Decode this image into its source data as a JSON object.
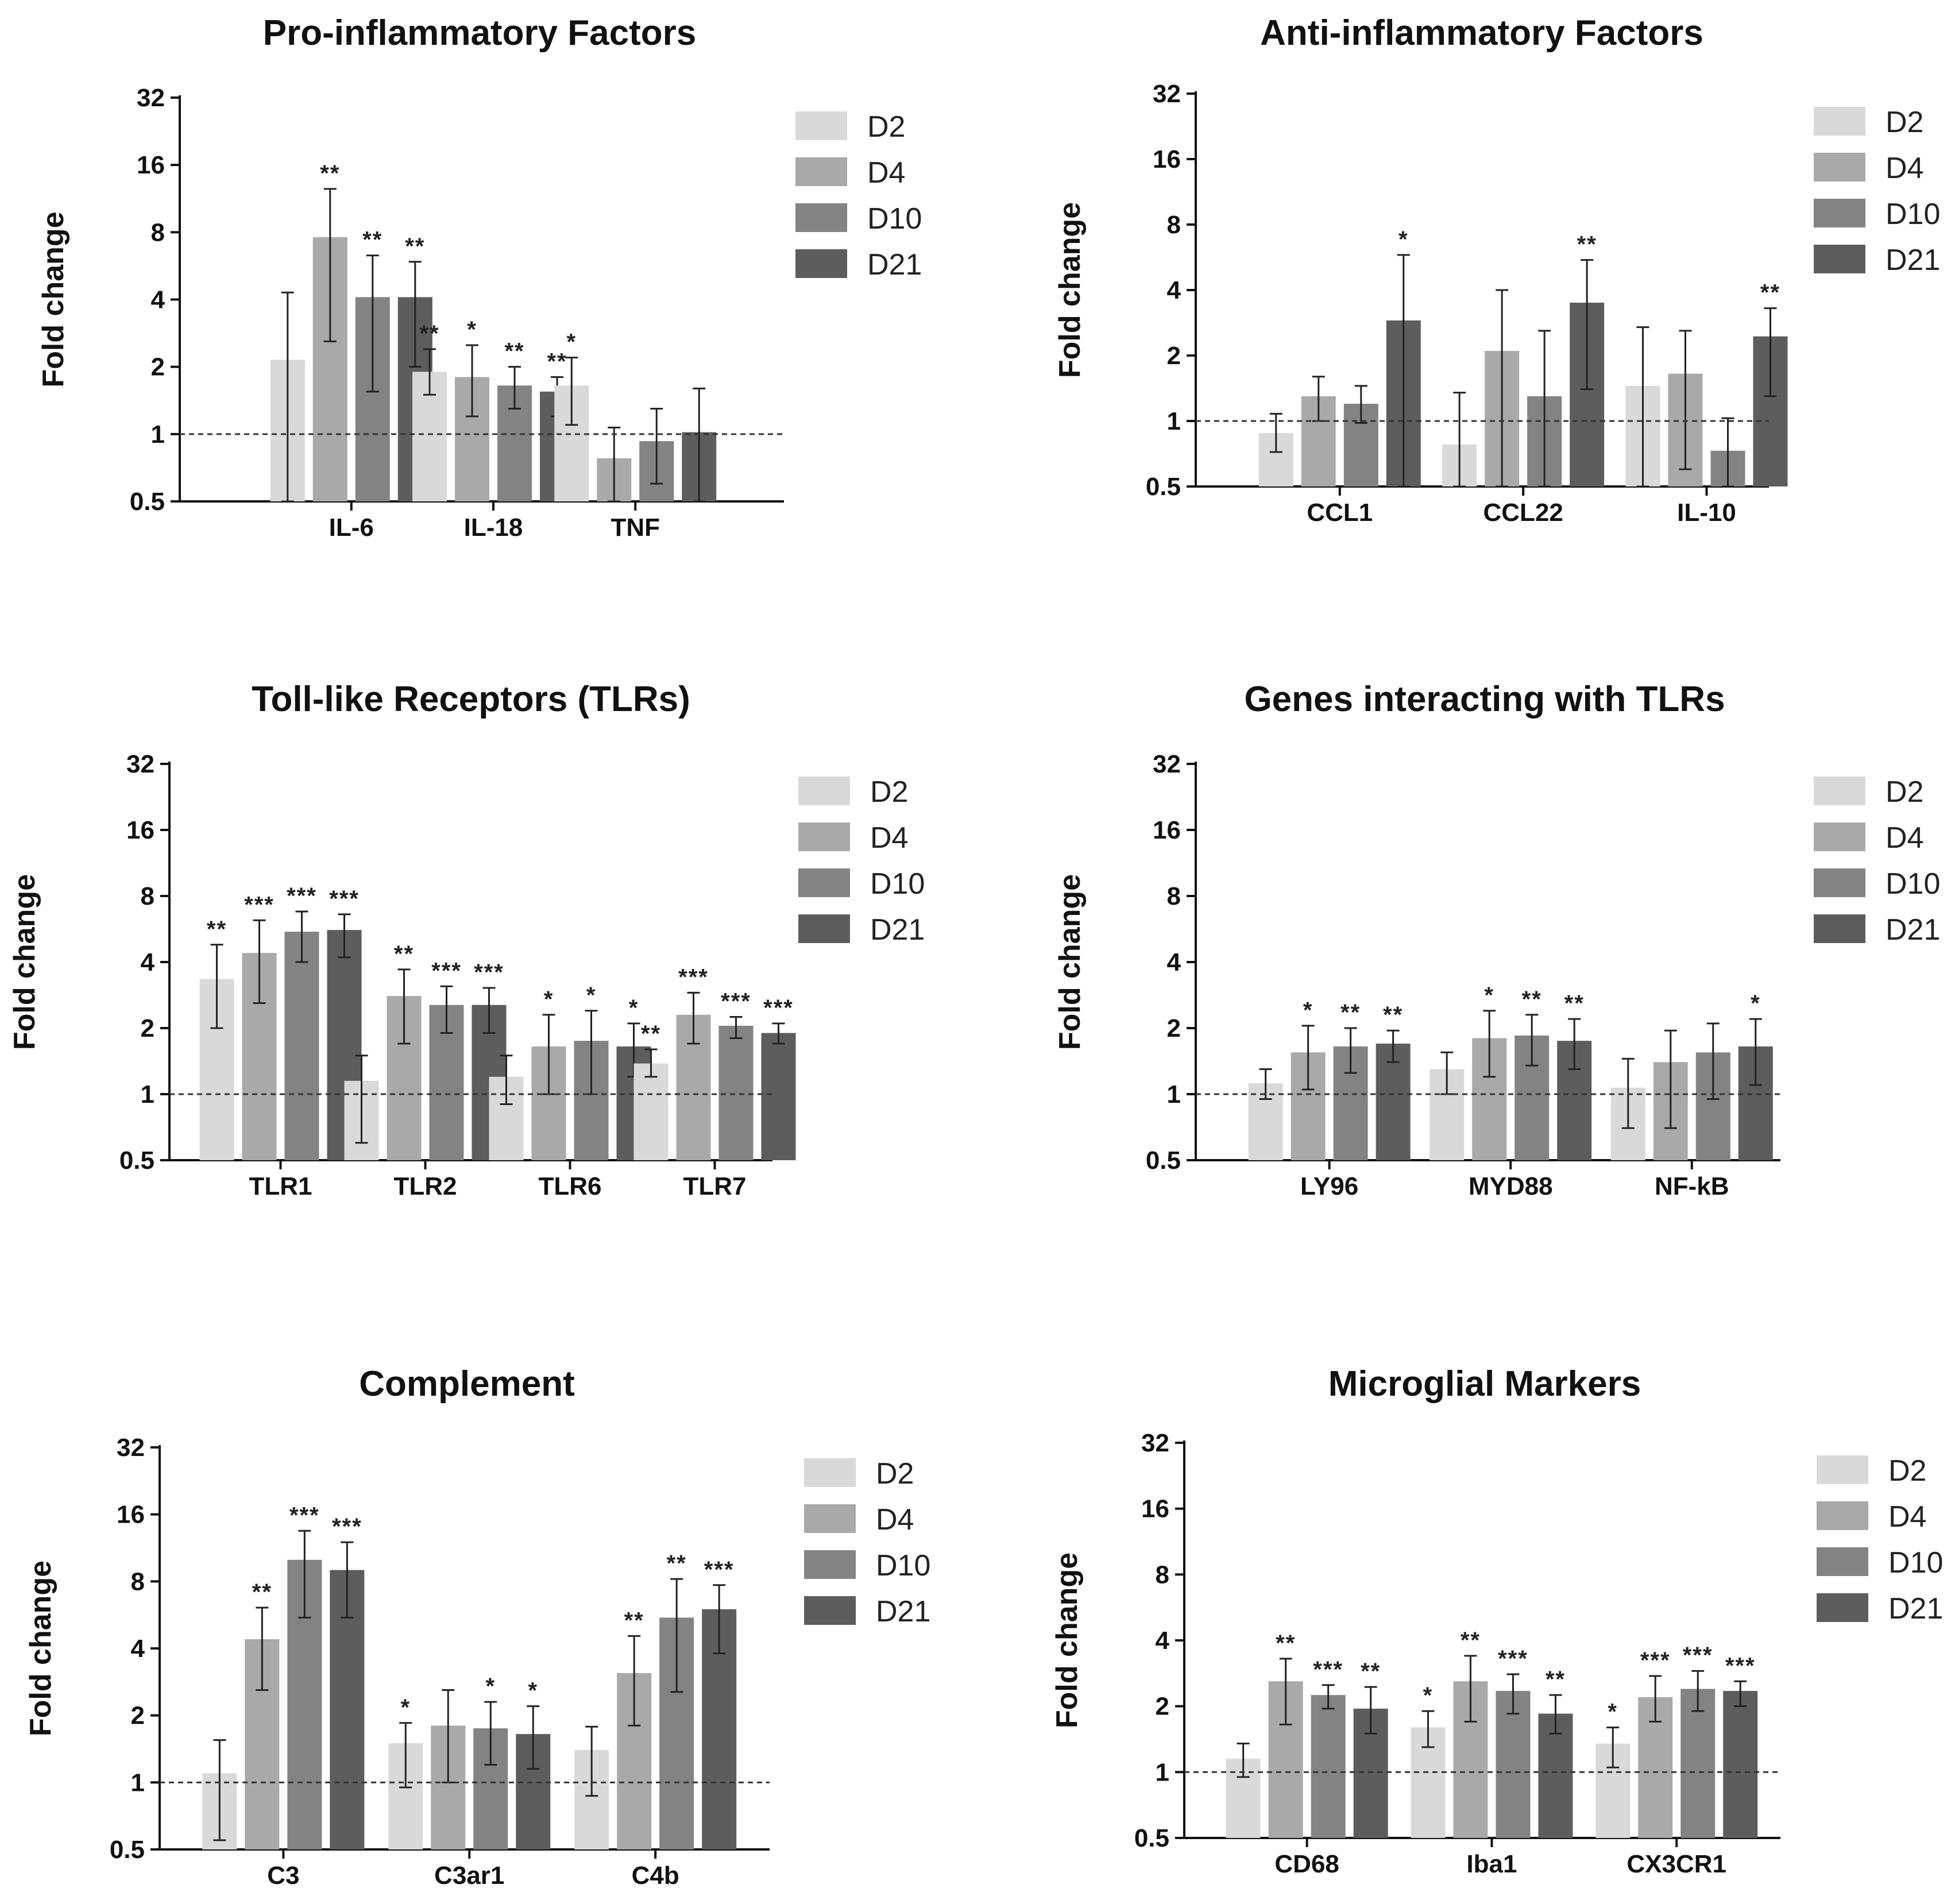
{
  "chart_data": [
    {
      "type": "bar",
      "title": "Pro-inflammatory Factors",
      "ylabel": "Fold change",
      "yscale": "log2",
      "ylim": [
        0.5,
        32
      ],
      "yticks": [
        "32",
        "16",
        "8",
        "4",
        "2",
        "1",
        "0.5"
      ],
      "reference_line": 1,
      "legend": [
        "D2",
        "D4",
        "D10",
        "D21"
      ],
      "categories": [
        "IL-6",
        "IL-18",
        "TNF"
      ],
      "series": [
        {
          "name": "D2",
          "color": "#d9d9d9",
          "values": [
            2.15,
            1.9,
            1.65
          ],
          "err_low": [
            0.5,
            1.5,
            1.1
          ],
          "err_high": [
            4.3,
            2.4,
            2.2
          ],
          "sig": [
            "",
            "**",
            "*"
          ]
        },
        {
          "name": "D4",
          "color": "#a9a9a9",
          "values": [
            7.6,
            1.8,
            0.78
          ],
          "err_low": [
            2.6,
            1.2,
            0.5
          ],
          "err_high": [
            12.5,
            2.5,
            1.07
          ],
          "sig": [
            "**",
            "*",
            ""
          ]
        },
        {
          "name": "D10",
          "color": "#838383",
          "values": [
            4.1,
            1.65,
            0.93
          ],
          "err_low": [
            1.55,
            1.3,
            0.6
          ],
          "err_high": [
            6.3,
            2.0,
            1.3
          ],
          "sig": [
            "**",
            "**",
            ""
          ]
        },
        {
          "name": "D21",
          "color": "#5d5d5d",
          "values": [
            4.1,
            1.55,
            1.02
          ],
          "err_low": [
            2.0,
            1.2,
            0.5
          ],
          "err_high": [
            5.9,
            1.8,
            1.6
          ],
          "sig": [
            "**",
            "**",
            ""
          ]
        }
      ]
    },
    {
      "type": "bar",
      "title": "Anti-inflammatory Factors",
      "ylabel": "Fold change",
      "yscale": "log2",
      "ylim": [
        0.5,
        32
      ],
      "yticks": [
        "32",
        "16",
        "8",
        "4",
        "2",
        "1",
        "0.5"
      ],
      "reference_line": 1,
      "legend": [
        "D2",
        "D4",
        "D10",
        "D21"
      ],
      "categories": [
        "CCL1",
        "CCL22",
        "IL-10"
      ],
      "series": [
        {
          "name": "D2",
          "color": "#d9d9d9",
          "values": [
            0.88,
            0.78,
            1.45
          ],
          "err_low": [
            0.72,
            0.5,
            0.5
          ],
          "err_high": [
            1.08,
            1.35,
            2.7
          ],
          "sig": [
            "",
            "",
            ""
          ]
        },
        {
          "name": "D4",
          "color": "#a9a9a9",
          "values": [
            1.3,
            2.1,
            1.65
          ],
          "err_low": [
            1.0,
            0.5,
            0.6
          ],
          "err_high": [
            1.6,
            4.0,
            2.6
          ],
          "sig": [
            "",
            "",
            ""
          ]
        },
        {
          "name": "D10",
          "color": "#838383",
          "values": [
            1.2,
            1.3,
            0.73
          ],
          "err_low": [
            0.98,
            0.5,
            0.5
          ],
          "err_high": [
            1.45,
            2.6,
            1.03
          ],
          "sig": [
            "",
            "",
            ""
          ]
        },
        {
          "name": "D21",
          "color": "#5d5d5d",
          "values": [
            2.9,
            3.5,
            2.45
          ],
          "err_low": [
            0.5,
            1.4,
            1.3
          ],
          "err_high": [
            5.8,
            5.5,
            3.3
          ],
          "sig": [
            "*",
            "**",
            "**"
          ]
        }
      ]
    },
    {
      "type": "bar",
      "title": "Toll-like Receptors (TLRs)",
      "ylabel": "Fold change",
      "yscale": "log2",
      "ylim": [
        0.5,
        32
      ],
      "yticks": [
        "32",
        "16",
        "8",
        "4",
        "2",
        "1",
        "0.5"
      ],
      "reference_line": 1,
      "legend": [
        "D2",
        "D4",
        "D10",
        "D21"
      ],
      "categories": [
        "TLR1",
        "TLR2",
        "TLR6",
        "TLR7"
      ],
      "series": [
        {
          "name": "D2",
          "color": "#d9d9d9",
          "values": [
            3.35,
            1.15,
            1.2,
            1.38
          ],
          "err_low": [
            2.0,
            0.6,
            0.9,
            1.2
          ],
          "err_high": [
            4.8,
            1.5,
            1.5,
            1.6
          ],
          "sig": [
            "**",
            "",
            "",
            "**"
          ]
        },
        {
          "name": "D4",
          "color": "#a9a9a9",
          "values": [
            4.4,
            2.8,
            1.65,
            2.3
          ],
          "err_low": [
            2.6,
            1.7,
            1.0,
            1.7
          ],
          "err_high": [
            6.2,
            3.7,
            2.3,
            2.9
          ],
          "sig": [
            "***",
            "**",
            "*",
            "***"
          ]
        },
        {
          "name": "D10",
          "color": "#838383",
          "values": [
            5.5,
            2.55,
            1.75,
            2.05
          ],
          "err_low": [
            4.0,
            1.9,
            1.0,
            1.8
          ],
          "err_high": [
            6.8,
            3.1,
            2.4,
            2.25
          ],
          "sig": [
            "***",
            "***",
            "*",
            "***"
          ]
        },
        {
          "name": "D21",
          "color": "#5d5d5d",
          "values": [
            5.6,
            2.55,
            1.65,
            1.9
          ],
          "err_low": [
            4.2,
            1.9,
            1.2,
            1.7
          ],
          "err_high": [
            6.6,
            3.05,
            2.1,
            2.1
          ],
          "sig": [
            "***",
            "***",
            "*",
            "***"
          ]
        }
      ]
    },
    {
      "type": "bar",
      "title": "Genes interacting with TLRs",
      "ylabel": "Fold change",
      "yscale": "log2",
      "ylim": [
        0.5,
        32
      ],
      "yticks": [
        "32",
        "16",
        "8",
        "4",
        "2",
        "1",
        "0.5"
      ],
      "reference_line": 1,
      "legend": [
        "D2",
        "D4",
        "D10",
        "D21"
      ],
      "categories": [
        "LY96",
        "MYD88",
        "NF-kB"
      ],
      "series": [
        {
          "name": "D2",
          "color": "#d9d9d9",
          "values": [
            1.12,
            1.3,
            1.07
          ],
          "err_low": [
            0.95,
            1.0,
            0.7
          ],
          "err_high": [
            1.3,
            1.55,
            1.45
          ],
          "sig": [
            "",
            "",
            ""
          ]
        },
        {
          "name": "D4",
          "color": "#a9a9a9",
          "values": [
            1.55,
            1.8,
            1.4
          ],
          "err_low": [
            1.05,
            1.2,
            0.7
          ],
          "err_high": [
            2.05,
            2.4,
            1.95
          ],
          "sig": [
            "*",
            "*",
            ""
          ]
        },
        {
          "name": "D10",
          "color": "#838383",
          "values": [
            1.65,
            1.85,
            1.55
          ],
          "err_low": [
            1.25,
            1.35,
            0.95
          ],
          "err_high": [
            2.0,
            2.3,
            2.1
          ],
          "sig": [
            "**",
            "**",
            ""
          ]
        },
        {
          "name": "D21",
          "color": "#5d5d5d",
          "values": [
            1.7,
            1.75,
            1.65
          ],
          "err_low": [
            1.4,
            1.3,
            1.1
          ],
          "err_high": [
            1.95,
            2.2,
            2.2
          ],
          "sig": [
            "**",
            "**",
            "*"
          ]
        }
      ]
    },
    {
      "type": "bar",
      "title": "Complement",
      "ylabel": "Fold change",
      "yscale": "log2",
      "ylim": [
        0.5,
        32
      ],
      "yticks": [
        "32",
        "16",
        "8",
        "4",
        "2",
        "1",
        "0.5"
      ],
      "reference_line": 1,
      "legend": [
        "D2",
        "D4",
        "D10",
        "D21"
      ],
      "categories": [
        "C3",
        "C3ar1",
        "C4b"
      ],
      "series": [
        {
          "name": "D2",
          "color": "#d9d9d9",
          "values": [
            1.1,
            1.5,
            1.4
          ],
          "err_low": [
            0.55,
            0.95,
            0.87
          ],
          "err_high": [
            1.55,
            1.85,
            1.78
          ],
          "sig": [
            "",
            "*",
            ""
          ]
        },
        {
          "name": "D4",
          "color": "#a9a9a9",
          "values": [
            4.4,
            1.8,
            3.1
          ],
          "err_low": [
            2.6,
            1.0,
            1.8
          ],
          "err_high": [
            6.1,
            2.6,
            4.55
          ],
          "sig": [
            "**",
            "",
            "**"
          ]
        },
        {
          "name": "D10",
          "color": "#838383",
          "values": [
            10.0,
            1.75,
            5.5
          ],
          "err_low": [
            5.5,
            1.2,
            2.55
          ],
          "err_high": [
            13.5,
            2.3,
            8.2
          ],
          "sig": [
            "***",
            "*",
            "**"
          ]
        },
        {
          "name": "D21",
          "color": "#5d5d5d",
          "values": [
            9.0,
            1.65,
            6.0
          ],
          "err_low": [
            5.5,
            1.15,
            3.8
          ],
          "err_high": [
            12.0,
            2.2,
            7.7
          ],
          "sig": [
            "***",
            "*",
            "***"
          ]
        }
      ]
    },
    {
      "type": "bar",
      "title": "Microglial Markers",
      "ylabel": "Fold change",
      "yscale": "log2",
      "ylim": [
        0.5,
        32
      ],
      "yticks": [
        "32",
        "16",
        "8",
        "4",
        "2",
        "1",
        "0.5"
      ],
      "reference_line": 1,
      "legend": [
        "D2",
        "D4",
        "D10",
        "D21"
      ],
      "categories": [
        "CD68",
        "Iba1",
        "CX3CR1"
      ],
      "series": [
        {
          "name": "D2",
          "color": "#d9d9d9",
          "values": [
            1.15,
            1.6,
            1.35
          ],
          "err_low": [
            0.95,
            1.3,
            1.05
          ],
          "err_high": [
            1.35,
            1.9,
            1.6
          ],
          "sig": [
            "",
            "*",
            "*"
          ]
        },
        {
          "name": "D4",
          "color": "#a9a9a9",
          "values": [
            2.6,
            2.6,
            2.2
          ],
          "err_low": [
            1.65,
            1.7,
            1.7
          ],
          "err_high": [
            3.3,
            3.4,
            2.75
          ],
          "sig": [
            "**",
            "**",
            "***"
          ]
        },
        {
          "name": "D10",
          "color": "#838383",
          "values": [
            2.25,
            2.35,
            2.4
          ],
          "err_low": [
            1.95,
            1.85,
            1.9
          ],
          "err_high": [
            2.5,
            2.8,
            2.9
          ],
          "sig": [
            "***",
            "***",
            "***"
          ]
        },
        {
          "name": "D21",
          "color": "#5d5d5d",
          "values": [
            1.95,
            1.85,
            2.35
          ],
          "err_low": [
            1.5,
            1.5,
            2.0
          ],
          "err_high": [
            2.45,
            2.25,
            2.6
          ],
          "sig": [
            "**",
            "**",
            "***"
          ]
        }
      ]
    }
  ]
}
